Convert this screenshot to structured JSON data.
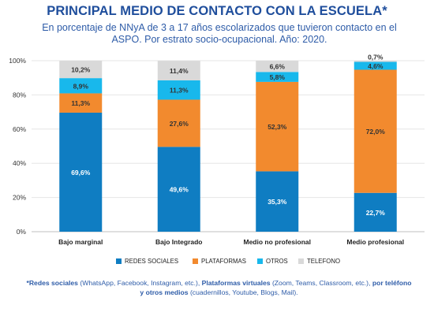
{
  "title": "PRINCIPAL MEDIO DE CONTACTO CON LA ESCUELA*",
  "subtitle_line1": "En porcentaje de NNyA de 3 a 17 años escolarizados que tuvieron contacto en el",
  "subtitle_line2": "ASPO. Por estrato socio-ocupacional. Año: 2020.",
  "note": {
    "b1": "*Redes sociales",
    "t1": " (WhatsApp, Facebook, Instagram, etc.), ",
    "b2": "Plataformas virtuales",
    "t2": " (Zoom, Teams, Classroom, etc.), ",
    "b3": "por teléfono y otros medios",
    "t3": " (cuadernillos, Youtube, Blogs, Mail)."
  },
  "chart_data": {
    "type": "bar",
    "stacked": true,
    "categories": [
      "Bajo marginal",
      "Bajo Integrado",
      "Medio no profesional",
      "Medio profesional"
    ],
    "series": [
      {
        "name": "REDES SOCIALES",
        "color": "#0F7DC2",
        "values": [
          69.6,
          49.6,
          35.3,
          22.7
        ],
        "labels": [
          "69,6%",
          "49,6%",
          "35,3%",
          "22,7%"
        ]
      },
      {
        "name": "PLATAFORMAS",
        "color": "#F28A2E",
        "values": [
          11.3,
          27.6,
          52.3,
          72.0
        ],
        "labels": [
          "11,3%",
          "27,6%",
          "52,3%",
          "72,0%"
        ]
      },
      {
        "name": "OTROS",
        "color": "#18B8EC",
        "values": [
          8.9,
          11.3,
          5.8,
          4.6
        ],
        "labels": [
          "8,9%",
          "11,3%",
          "5,8%",
          "4,6%"
        ]
      },
      {
        "name": "TELEFONO",
        "color": "#D9D9D9",
        "values": [
          10.2,
          11.4,
          6.6,
          0.7
        ],
        "labels": [
          "10,2%",
          "11,4%",
          "6,6%",
          "0,7%"
        ]
      }
    ],
    "y_ticks": [
      "0%",
      "20%",
      "40%",
      "60%",
      "80%",
      "100%"
    ],
    "ylim": [
      0,
      100
    ],
    "grid": true,
    "legend": "bottom"
  }
}
